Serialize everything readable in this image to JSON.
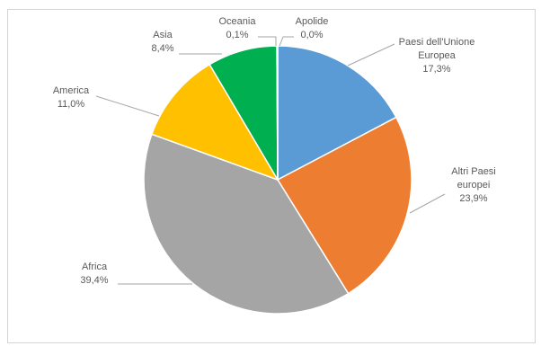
{
  "chart_data": {
    "type": "pie",
    "title": "",
    "slices": [
      {
        "label": [
          "Paesi dell'Unione",
          "Europea"
        ],
        "value_text": "17,3%",
        "value": 17.3,
        "color": "#5b9bd5"
      },
      {
        "label": [
          "Altri Paesi",
          "europei"
        ],
        "value_text": "23,9%",
        "value": 23.9,
        "color": "#ed7d31"
      },
      {
        "label": [
          "Africa"
        ],
        "value_text": "39,4%",
        "value": 39.4,
        "color": "#a5a5a5"
      },
      {
        "label": [
          "America"
        ],
        "value_text": "11,0%",
        "value": 11.0,
        "color": "#ffc000"
      },
      {
        "label": [
          "Asia"
        ],
        "value_text": "8,4%",
        "value": 8.4,
        "color": "#00b050"
      },
      {
        "label": [
          "Oceania"
        ],
        "value_text": "0,1%",
        "value": 0.1,
        "color": "#70ad47"
      },
      {
        "label": [
          "Apolide"
        ],
        "value_text": "0,0%",
        "value": 0.0,
        "color": "#4472c4"
      }
    ]
  }
}
